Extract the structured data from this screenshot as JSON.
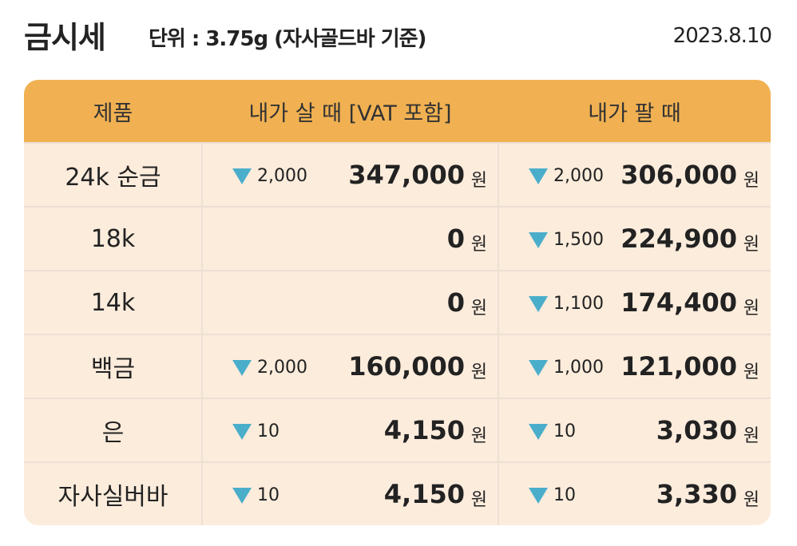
{
  "header": {
    "title": "금시세",
    "unit_note": "단위 : 3.75g (자사골드바 기준)",
    "date": "2023.8.10"
  },
  "table": {
    "columns": [
      "제품",
      "내가 살 때 [VAT 포함]",
      "내가 팔 때"
    ],
    "currency": "원",
    "rows": [
      {
        "product": "24k 순금",
        "buy_change": "2,000",
        "buy_price": "347,000",
        "sell_change": "2,000",
        "sell_price": "306,000"
      },
      {
        "product": "18k",
        "buy_change": null,
        "buy_price": "0",
        "sell_change": "1,500",
        "sell_price": "224,900"
      },
      {
        "product": "14k",
        "buy_change": null,
        "buy_price": "0",
        "sell_change": "1,100",
        "sell_price": "174,400"
      },
      {
        "product": "백금",
        "buy_change": "2,000",
        "buy_price": "160,000",
        "sell_change": "1,000",
        "sell_price": "121,000"
      },
      {
        "product": "은",
        "buy_change": "10",
        "buy_price": "4,150",
        "sell_change": "10",
        "sell_price": "3,030"
      },
      {
        "product": "자사실버바",
        "buy_change": "10",
        "buy_price": "4,150",
        "sell_change": "10",
        "sell_price": "3,330"
      }
    ]
  }
}
